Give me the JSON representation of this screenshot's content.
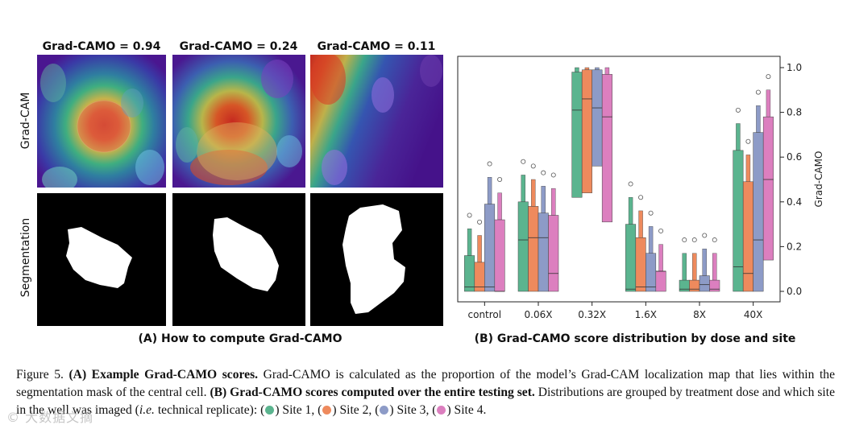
{
  "panel_a": {
    "scores": [
      "Grad-CAMO = 0.94",
      "Grad-CAMO = 0.24",
      "Grad-CAMO = 0.11"
    ],
    "row_labels": [
      "Grad-CAM",
      "Segmentation"
    ],
    "caption": "(A) How to compute Grad-CAMO"
  },
  "panel_b": {
    "caption": "(B) Grad-CAMO score distribution by dose and site"
  },
  "chart_data": {
    "type": "boxen",
    "ylabel": "Grad-CAMO",
    "ylim": [
      0,
      1.0
    ],
    "yticks": [
      "0.0",
      "0.2",
      "0.4",
      "0.6",
      "0.8",
      "1.0"
    ],
    "categories": [
      "control",
      "0.06X",
      "0.32X",
      "1.6X",
      "8X",
      "40X"
    ],
    "site_colors": [
      "#5bb48f",
      "#ee8a5d",
      "#8d9bc7",
      "#dc7fbf"
    ],
    "series": [
      {
        "name": "Site 1",
        "medians": [
          0.02,
          0.23,
          0.81,
          0.01,
          0.01,
          0.11
        ],
        "levels": [
          [
            0.0,
            0.16
          ],
          [
            0.0,
            0.4
          ],
          [
            0.42,
            0.98
          ],
          [
            0.0,
            0.3
          ],
          [
            0.0,
            0.05
          ],
          [
            0.0,
            0.63
          ]
        ]
      },
      {
        "name": "Site 2",
        "medians": [
          0.02,
          0.24,
          0.86,
          0.02,
          0.01,
          0.08
        ],
        "levels": [
          [
            0.0,
            0.13
          ],
          [
            0.0,
            0.38
          ],
          [
            0.44,
            0.99
          ],
          [
            0.0,
            0.24
          ],
          [
            0.0,
            0.05
          ],
          [
            0.0,
            0.49
          ]
        ]
      },
      {
        "name": "Site 3",
        "medians": [
          0.02,
          0.24,
          0.82,
          0.02,
          0.03,
          0.23
        ],
        "levels": [
          [
            0.0,
            0.39
          ],
          [
            0.0,
            0.35
          ],
          [
            0.56,
            0.99
          ],
          [
            0.0,
            0.17
          ],
          [
            0.0,
            0.07
          ],
          [
            0.0,
            0.71
          ]
        ]
      },
      {
        "name": "Site 4",
        "medians": [
          0.0,
          0.08,
          0.78,
          0.09,
          0.01,
          0.5
        ],
        "levels": [
          [
            0.0,
            0.32
          ],
          [
            0.0,
            0.34
          ],
          [
            0.31,
            0.97
          ],
          [
            0.0,
            0.09
          ],
          [
            0.0,
            0.05
          ],
          [
            0.14,
            0.78
          ]
        ]
      }
    ]
  },
  "figure_caption": {
    "fig_label": "Figure 5.",
    "a_bold": "(A) Example Grad-CAMO scores.",
    "a_text": " Grad-CAMO is calculated as the proportion of the model’s Grad-CAM localization map that lies within the segmentation mask of the central cell. ",
    "b_bold": "(B) Grad-CAMO scores computed over the entire testing set.",
    "b_text1": " Distributions are grouped by treatment dose and which site in the well was imaged (",
    "b_ie": "i.e.",
    "b_text2": " technical replicate): (",
    "site1": ") Site 1, (",
    "site2": ") Site 2, (",
    "site3": ") Site 3, (",
    "site4": ") Site 4."
  },
  "watermark": "© 大数据文摘"
}
